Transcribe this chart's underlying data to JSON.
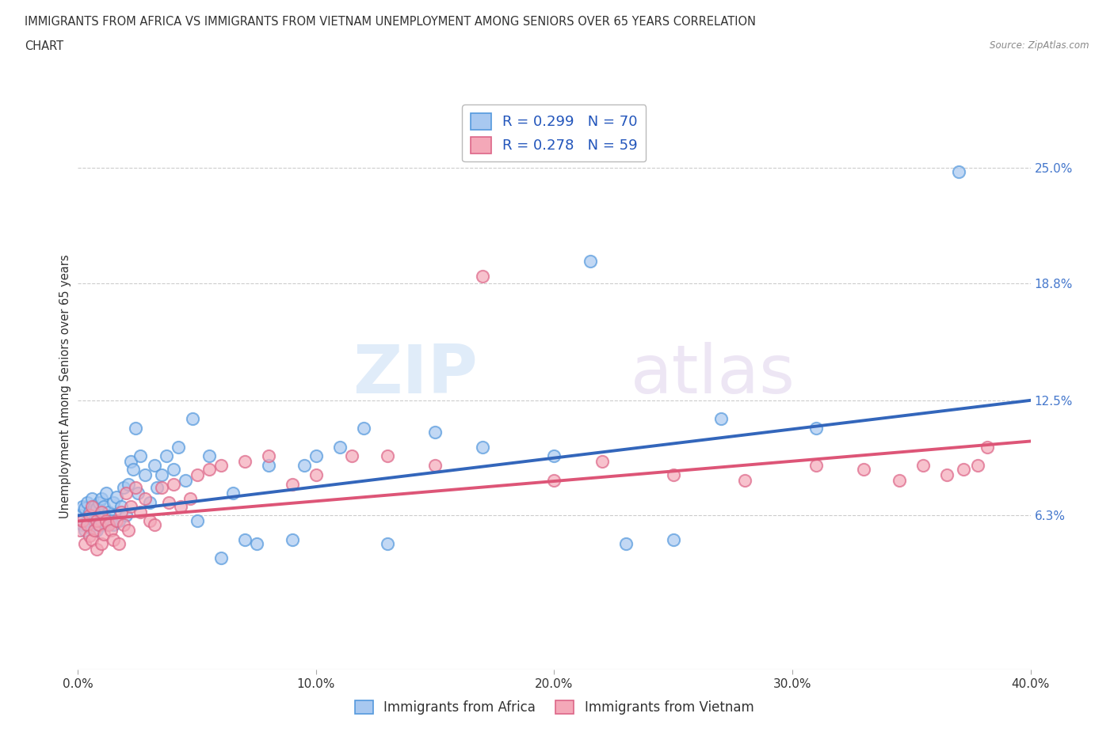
{
  "title_line1": "IMMIGRANTS FROM AFRICA VS IMMIGRANTS FROM VIETNAM UNEMPLOYMENT AMONG SENIORS OVER 65 YEARS CORRELATION",
  "title_line2": "CHART",
  "source_text": "Source: ZipAtlas.com",
  "ylabel": "Unemployment Among Seniors over 65 years",
  "xlim": [
    0.0,
    0.4
  ],
  "ylim": [
    -0.02,
    0.285
  ],
  "xtick_labels": [
    "0.0%",
    "10.0%",
    "20.0%",
    "30.0%",
    "40.0%"
  ],
  "xtick_vals": [
    0.0,
    0.1,
    0.2,
    0.3,
    0.4
  ],
  "ytick_labels": [
    "6.3%",
    "12.5%",
    "18.8%",
    "25.0%"
  ],
  "ytick_vals": [
    0.063,
    0.125,
    0.188,
    0.25
  ],
  "africa_color": "#a8c8f0",
  "africa_color_dark": "#5599dd",
  "vietnam_color": "#f4a8b8",
  "vietnam_color_dark": "#dd6688",
  "trend_africa_color": "#3366bb",
  "trend_vietnam_color": "#dd5577",
  "africa_R": 0.299,
  "africa_N": 70,
  "vietnam_R": 0.278,
  "vietnam_N": 59,
  "watermark_zip": "ZIP",
  "watermark_atlas": "atlas",
  "legend_label_africa": "Immigrants from Africa",
  "legend_label_vietnam": "Immigrants from Vietnam",
  "africa_x": [
    0.001,
    0.002,
    0.002,
    0.003,
    0.003,
    0.004,
    0.004,
    0.005,
    0.005,
    0.006,
    0.006,
    0.007,
    0.007,
    0.008,
    0.008,
    0.009,
    0.009,
    0.01,
    0.01,
    0.011,
    0.011,
    0.012,
    0.012,
    0.013,
    0.014,
    0.015,
    0.015,
    0.016,
    0.017,
    0.018,
    0.019,
    0.02,
    0.021,
    0.022,
    0.023,
    0.024,
    0.025,
    0.026,
    0.028,
    0.03,
    0.032,
    0.033,
    0.035,
    0.037,
    0.04,
    0.042,
    0.045,
    0.048,
    0.05,
    0.055,
    0.06,
    0.065,
    0.07,
    0.075,
    0.08,
    0.09,
    0.095,
    0.1,
    0.11,
    0.12,
    0.13,
    0.15,
    0.17,
    0.2,
    0.215,
    0.23,
    0.25,
    0.27,
    0.31,
    0.37
  ],
  "africa_y": [
    0.063,
    0.058,
    0.068,
    0.055,
    0.067,
    0.06,
    0.07,
    0.057,
    0.065,
    0.063,
    0.072,
    0.06,
    0.068,
    0.055,
    0.067,
    0.058,
    0.07,
    0.06,
    0.072,
    0.063,
    0.068,
    0.058,
    0.075,
    0.065,
    0.06,
    0.07,
    0.058,
    0.073,
    0.06,
    0.068,
    0.078,
    0.063,
    0.08,
    0.092,
    0.088,
    0.11,
    0.075,
    0.095,
    0.085,
    0.07,
    0.09,
    0.078,
    0.085,
    0.095,
    0.088,
    0.1,
    0.082,
    0.115,
    0.06,
    0.095,
    0.04,
    0.075,
    0.05,
    0.048,
    0.09,
    0.05,
    0.09,
    0.095,
    0.1,
    0.11,
    0.048,
    0.108,
    0.1,
    0.095,
    0.2,
    0.048,
    0.05,
    0.115,
    0.11,
    0.248
  ],
  "vietnam_x": [
    0.001,
    0.002,
    0.003,
    0.004,
    0.005,
    0.005,
    0.006,
    0.006,
    0.007,
    0.008,
    0.008,
    0.009,
    0.01,
    0.01,
    0.011,
    0.012,
    0.013,
    0.014,
    0.015,
    0.016,
    0.017,
    0.018,
    0.019,
    0.02,
    0.021,
    0.022,
    0.024,
    0.026,
    0.028,
    0.03,
    0.032,
    0.035,
    0.038,
    0.04,
    0.043,
    0.047,
    0.05,
    0.055,
    0.06,
    0.07,
    0.08,
    0.09,
    0.1,
    0.115,
    0.13,
    0.15,
    0.17,
    0.2,
    0.22,
    0.25,
    0.28,
    0.31,
    0.33,
    0.345,
    0.355,
    0.365,
    0.372,
    0.378,
    0.382
  ],
  "vietnam_y": [
    0.055,
    0.06,
    0.048,
    0.058,
    0.052,
    0.063,
    0.05,
    0.068,
    0.055,
    0.045,
    0.06,
    0.058,
    0.048,
    0.065,
    0.053,
    0.06,
    0.058,
    0.055,
    0.05,
    0.06,
    0.048,
    0.065,
    0.058,
    0.075,
    0.055,
    0.068,
    0.078,
    0.065,
    0.072,
    0.06,
    0.058,
    0.078,
    0.07,
    0.08,
    0.068,
    0.072,
    0.085,
    0.088,
    0.09,
    0.092,
    0.095,
    0.08,
    0.085,
    0.095,
    0.095,
    0.09,
    0.192,
    0.082,
    0.092,
    0.085,
    0.082,
    0.09,
    0.088,
    0.082,
    0.09,
    0.085,
    0.088,
    0.09,
    0.1
  ],
  "trend_africa_x0": 0.0,
  "trend_africa_y0": 0.063,
  "trend_africa_x1": 0.4,
  "trend_africa_y1": 0.125,
  "trend_vietnam_x0": 0.0,
  "trend_vietnam_y0": 0.06,
  "trend_vietnam_x1": 0.4,
  "trend_vietnam_y1": 0.103
}
